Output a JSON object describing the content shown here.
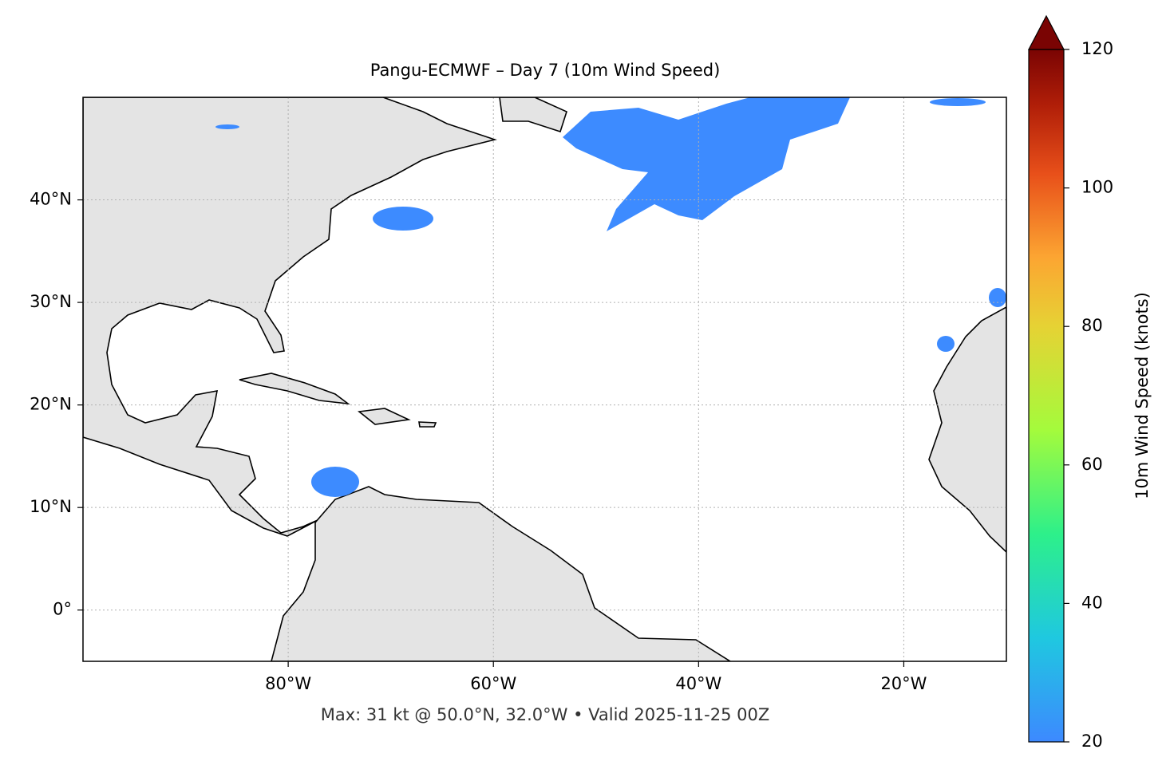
{
  "chart_data": {
    "type": "map",
    "title": "Pangu-ECMWF – Day 7 (10m Wind Speed)",
    "note": "Max: 31 kt @ 50.0°N, 32.0°W • Valid 2025-11-25 00Z",
    "xlim": [
      -100,
      -10
    ],
    "ylim": [
      -5,
      50
    ],
    "xticks": [
      {
        "value": -80,
        "label": "80°W"
      },
      {
        "value": -60,
        "label": "60°W"
      },
      {
        "value": -40,
        "label": "40°W"
      },
      {
        "value": -20,
        "label": "20°W"
      }
    ],
    "yticks": [
      {
        "value": 0,
        "label": "0°"
      },
      {
        "value": 10,
        "label": "10°N"
      },
      {
        "value": 20,
        "label": "20°N"
      },
      {
        "value": 30,
        "label": "30°N"
      },
      {
        "value": 40,
        "label": "40°N"
      }
    ],
    "grid": true,
    "colorbar": {
      "label": "10m Wind Speed (knots)",
      "lim": [
        20,
        120
      ],
      "ticks": [
        20,
        40,
        60,
        80,
        100,
        120
      ]
    }
  }
}
